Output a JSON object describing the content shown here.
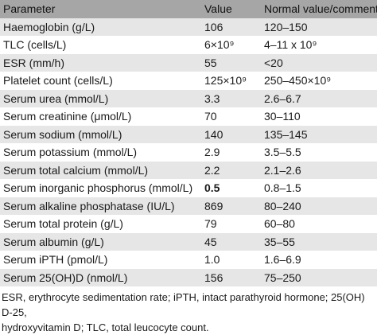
{
  "table": {
    "headers": {
      "parameter": "Parameter",
      "value": "Value",
      "normal": "Normal value/comments"
    },
    "rows": [
      {
        "parameter": "Haemoglobin (g/L)",
        "value": "106",
        "normal": "120–150"
      },
      {
        "parameter": "TLC (cells/L)",
        "value": "6×10⁹",
        "normal": "4–11 x 10⁹"
      },
      {
        "parameter": "ESR (mm/h)",
        "value": "55",
        "normal": "<20"
      },
      {
        "parameter": "Platelet count (cells/L)",
        "value": "125×10⁹",
        "normal": "250–450×10⁹"
      },
      {
        "parameter": "Serum urea (mmol/L)",
        "value": "3.3",
        "normal": "2.6–6.7"
      },
      {
        "parameter": "Serum creatinine (μmol/L)",
        "value": "70",
        "normal": "30–110"
      },
      {
        "parameter": "Serum sodium (mmol/L)",
        "value": "140",
        "normal": "135–145"
      },
      {
        "parameter": "Serum potassium (mmol/L)",
        "value": "2.9",
        "normal": "3.5–5.5"
      },
      {
        "parameter": "Serum total calcium (mmol/L)",
        "value": "2.2",
        "normal": "2.1–2.6"
      },
      {
        "parameter": "Serum inorganic phosphorus (mmol/L)",
        "value": "0.5",
        "normal": "0.8–1.5"
      },
      {
        "parameter": "Serum alkaline phosphatase (IU/L)",
        "value": "869",
        "normal": "80–240"
      },
      {
        "parameter": "Serum total protein (g/L)",
        "value": "79",
        "normal": "60–80"
      },
      {
        "parameter": "Serum albumin (g/L)",
        "value": "45",
        "normal": "35–55"
      },
      {
        "parameter": "Serum iPTH (pmol/L)",
        "value": "1.0",
        "normal": "1.6–6.9"
      },
      {
        "parameter": "Serum 25(OH)D (nmol/L)",
        "value": "156",
        "normal": "75–250"
      }
    ]
  },
  "footnote": {
    "line1": "ESR, erythrocyte sedimentation rate; iPTH, intact parathyroid hormone; 25(OH) D-25,",
    "line2": "hydroxyvitamin D; TLC, total leucocyte count."
  }
}
